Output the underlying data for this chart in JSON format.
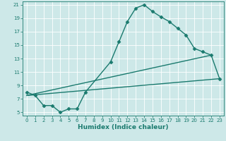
{
  "title": "",
  "xlabel": "Humidex (Indice chaleur)",
  "bg_color": "#cde8e8",
  "grid_color": "#ffffff",
  "line_color": "#1a7a6e",
  "xlim": [
    -0.5,
    23.5
  ],
  "ylim": [
    4.5,
    21.5
  ],
  "xticks": [
    0,
    1,
    2,
    3,
    4,
    5,
    6,
    7,
    8,
    9,
    10,
    11,
    12,
    13,
    14,
    15,
    16,
    17,
    18,
    19,
    20,
    21,
    22,
    23
  ],
  "yticks": [
    5,
    7,
    9,
    11,
    13,
    15,
    17,
    19,
    21
  ],
  "line1_x": [
    0,
    1,
    2,
    3,
    4,
    5,
    6,
    7,
    10,
    11,
    12,
    13,
    14,
    15,
    16,
    17,
    18,
    19,
    20,
    21,
    22,
    23
  ],
  "line1_y": [
    8.0,
    7.5,
    6.0,
    6.0,
    5.0,
    5.5,
    5.5,
    8.0,
    12.5,
    15.5,
    18.5,
    20.5,
    21.0,
    20.0,
    19.2,
    18.5,
    17.5,
    16.5,
    14.5,
    14.0,
    13.5,
    10.0
  ],
  "line2_x": [
    0,
    22
  ],
  "line2_y": [
    7.5,
    13.5
  ],
  "line3_x": [
    0,
    23
  ],
  "line3_y": [
    7.5,
    10.0
  ],
  "marker": "D",
  "markersize": 2.5,
  "linewidth": 1.0
}
